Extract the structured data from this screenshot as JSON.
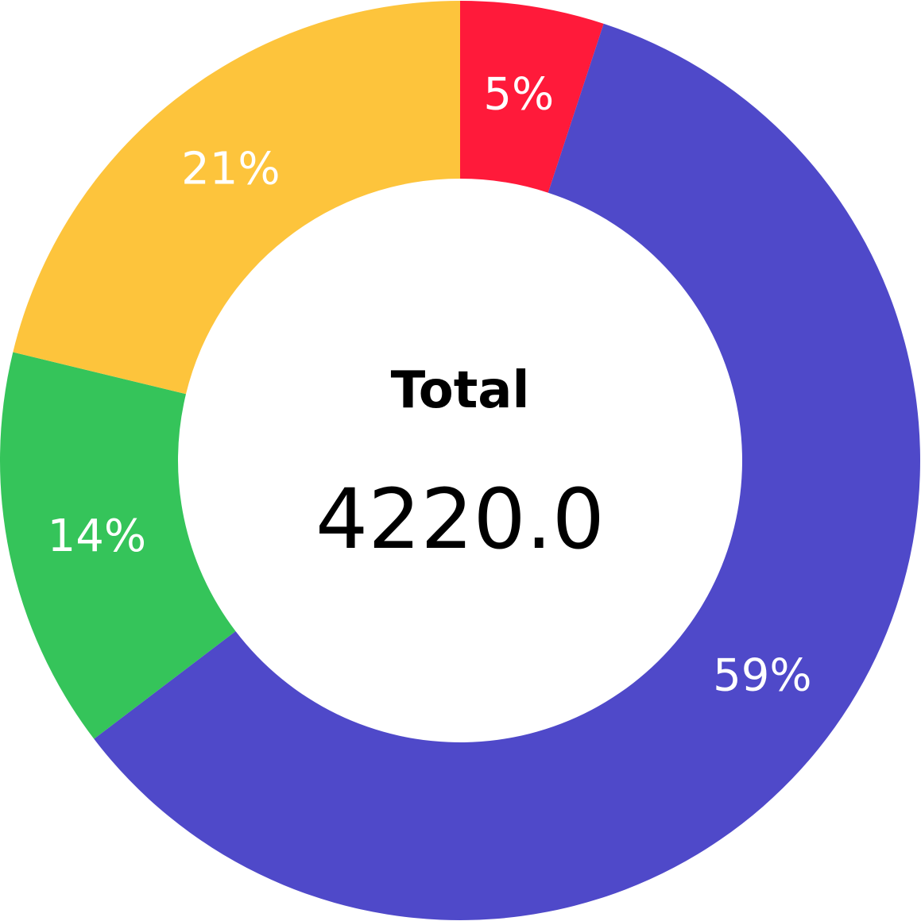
{
  "chart_data": {
    "type": "pie",
    "variant": "donut",
    "center_title": "Total",
    "center_value": "4220.0",
    "slices": [
      {
        "label": "5%",
        "value": 5,
        "color": "#ff1a3a"
      },
      {
        "label": "59%",
        "value": 59,
        "color": "#4f49c9"
      },
      {
        "label": "14%",
        "value": 14,
        "color": "#35c45a"
      },
      {
        "label": "21%",
        "value": 21,
        "color": "#fdc43c"
      }
    ]
  }
}
